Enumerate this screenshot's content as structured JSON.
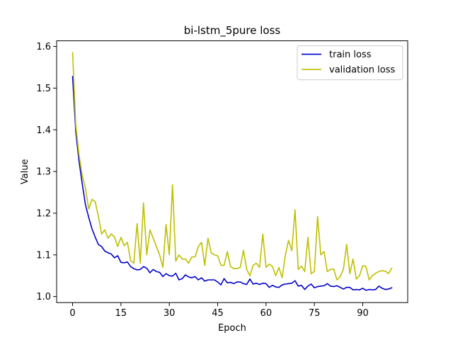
{
  "chart_data": {
    "type": "line",
    "title": "bi-lstm_5pure loss",
    "xlabel": "Epoch",
    "ylabel": "Value",
    "xlim": [
      -4.95,
      103.95
    ],
    "ylim": [
      0.9855,
      1.6135
    ],
    "xticks": [
      0,
      15,
      30,
      45,
      60,
      75,
      90
    ],
    "yticks": [
      1.0,
      1.1,
      1.2,
      1.3,
      1.4,
      1.5,
      1.6
    ],
    "ytick_labels": [
      "1.0",
      "1.1",
      "1.2",
      "1.3",
      "1.4",
      "1.5",
      "1.6"
    ],
    "legend_position": "upper right",
    "grid": false,
    "series": [
      {
        "name": "train loss",
        "color": "#0000cc",
        "x": [
          0,
          1,
          2,
          3,
          4,
          5,
          6,
          7,
          8,
          9,
          10,
          11,
          12,
          13,
          14,
          15,
          16,
          17,
          18,
          19,
          20,
          21,
          22,
          23,
          24,
          25,
          26,
          27,
          28,
          29,
          30,
          31,
          32,
          33,
          34,
          35,
          36,
          37,
          38,
          39,
          40,
          41,
          42,
          43,
          44,
          45,
          46,
          47,
          48,
          49,
          50,
          51,
          52,
          53,
          54,
          55,
          56,
          57,
          58,
          59,
          60,
          61,
          62,
          63,
          64,
          65,
          66,
          67,
          68,
          69,
          70,
          71,
          72,
          73,
          74,
          75,
          76,
          77,
          78,
          79,
          80,
          81,
          82,
          83,
          84,
          85,
          86,
          87,
          88,
          89,
          90,
          91,
          92,
          93,
          94,
          95,
          96,
          97,
          98,
          99
        ],
        "values": [
          1.528,
          1.395,
          1.325,
          1.27,
          1.22,
          1.19,
          1.163,
          1.143,
          1.125,
          1.12,
          1.109,
          1.105,
          1.102,
          1.093,
          1.098,
          1.082,
          1.081,
          1.083,
          1.072,
          1.067,
          1.064,
          1.065,
          1.072,
          1.068,
          1.057,
          1.065,
          1.06,
          1.058,
          1.048,
          1.055,
          1.05,
          1.049,
          1.056,
          1.04,
          1.043,
          1.052,
          1.047,
          1.045,
          1.048,
          1.04,
          1.045,
          1.037,
          1.04,
          1.04,
          1.04,
          1.035,
          1.028,
          1.043,
          1.033,
          1.034,
          1.031,
          1.035,
          1.035,
          1.031,
          1.029,
          1.042,
          1.03,
          1.032,
          1.029,
          1.032,
          1.031,
          1.022,
          1.027,
          1.023,
          1.022,
          1.028,
          1.03,
          1.031,
          1.032,
          1.038,
          1.025,
          1.027,
          1.017,
          1.025,
          1.03,
          1.021,
          1.024,
          1.025,
          1.026,
          1.031,
          1.025,
          1.024,
          1.026,
          1.022,
          1.018,
          1.022,
          1.022,
          1.016,
          1.017,
          1.016,
          1.02,
          1.015,
          1.017,
          1.016,
          1.017,
          1.025,
          1.02,
          1.017,
          1.018,
          1.021
        ]
      },
      {
        "name": "validation loss",
        "color": "#bfbf00",
        "x": [
          0,
          1,
          2,
          3,
          4,
          5,
          6,
          7,
          8,
          9,
          10,
          11,
          12,
          13,
          14,
          15,
          16,
          17,
          18,
          19,
          20,
          21,
          22,
          23,
          24,
          25,
          26,
          27,
          28,
          29,
          30,
          31,
          32,
          33,
          34,
          35,
          36,
          37,
          38,
          39,
          40,
          41,
          42,
          43,
          44,
          45,
          46,
          47,
          48,
          49,
          50,
          51,
          52,
          53,
          54,
          55,
          56,
          57,
          58,
          59,
          60,
          61,
          62,
          63,
          64,
          65,
          66,
          67,
          68,
          69,
          70,
          71,
          72,
          73,
          74,
          75,
          76,
          77,
          78,
          79,
          80,
          81,
          82,
          83,
          84,
          85,
          86,
          87,
          88,
          89,
          90,
          91,
          92,
          93,
          94,
          95,
          96,
          97,
          98,
          99
        ],
        "values": [
          1.585,
          1.41,
          1.34,
          1.29,
          1.26,
          1.21,
          1.233,
          1.228,
          1.193,
          1.15,
          1.16,
          1.14,
          1.15,
          1.143,
          1.12,
          1.142,
          1.122,
          1.13,
          1.086,
          1.08,
          1.175,
          1.08,
          1.225,
          1.1,
          1.16,
          1.14,
          1.12,
          1.1,
          1.07,
          1.173,
          1.1,
          1.268,
          1.085,
          1.1,
          1.09,
          1.09,
          1.08,
          1.095,
          1.095,
          1.12,
          1.13,
          1.075,
          1.14,
          1.105,
          1.1,
          1.098,
          1.075,
          1.075,
          1.108,
          1.072,
          1.067,
          1.067,
          1.07,
          1.111,
          1.065,
          1.05,
          1.075,
          1.08,
          1.07,
          1.15,
          1.07,
          1.078,
          1.072,
          1.05,
          1.07,
          1.045,
          1.1,
          1.135,
          1.11,
          1.208,
          1.065,
          1.073,
          1.06,
          1.142,
          1.055,
          1.06,
          1.192,
          1.1,
          1.108,
          1.06,
          1.065,
          1.066,
          1.04,
          1.048,
          1.065,
          1.125,
          1.055,
          1.09,
          1.042,
          1.05,
          1.074,
          1.072,
          1.04,
          1.05,
          1.056,
          1.06,
          1.062,
          1.061,
          1.055,
          1.068
        ]
      }
    ]
  }
}
